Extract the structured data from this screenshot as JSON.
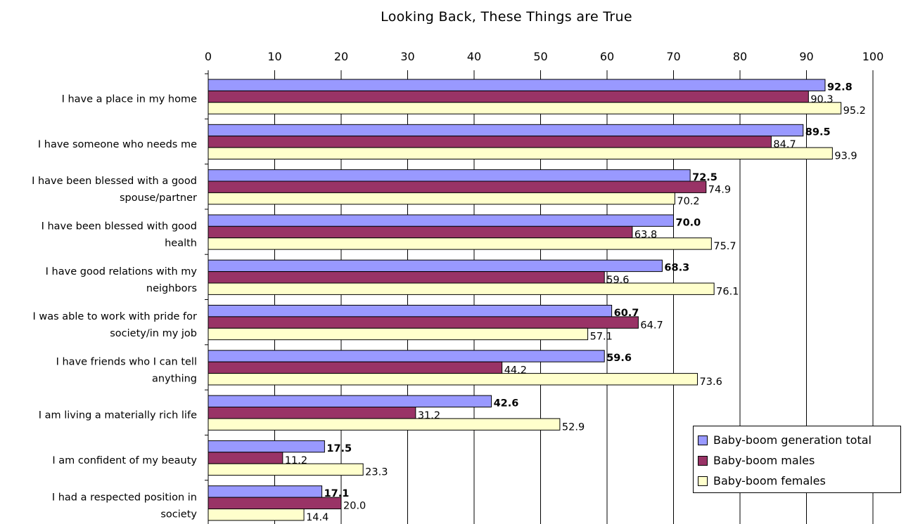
{
  "chart_data": {
    "type": "bar",
    "orientation": "horizontal",
    "title": "Looking Back, These Things are True",
    "xlim": [
      0,
      100
    ],
    "x_ticks": [
      "0",
      "10",
      "20",
      "30",
      "40",
      "50",
      "60",
      "70",
      "80",
      "90",
      "100"
    ],
    "grid": "vertical",
    "legend_position": "bottom-right",
    "categories": [
      [
        "I have a place in my home"
      ],
      [
        "I have someone who needs me"
      ],
      [
        "I have been blessed with a good",
        "spouse/partner"
      ],
      [
        "I have been blessed with good",
        "health"
      ],
      [
        "I have good relations with my",
        "neighbors"
      ],
      [
        "I was able to work with pride for",
        "society/in my job"
      ],
      [
        "I have friends who I can tell",
        "anything"
      ],
      [
        "I am living a materially rich life"
      ],
      [
        "I am confident of my beauty"
      ],
      [
        "I had a respected position in",
        "society"
      ]
    ],
    "series": [
      {
        "name": "Baby-boom generation total",
        "color": "#9999ff",
        "values": [
          92.8,
          89.5,
          72.5,
          70.0,
          68.3,
          60.7,
          59.6,
          42.6,
          17.5,
          17.1
        ],
        "labels": [
          "92.8",
          "89.5",
          "72.5",
          "70.0",
          "68.3",
          "60.7",
          "59.6",
          "42.6",
          "17.5",
          "17.1"
        ]
      },
      {
        "name": "Baby-boom males",
        "color": "#993366",
        "values": [
          90.3,
          84.7,
          74.9,
          63.8,
          59.6,
          64.7,
          44.2,
          31.2,
          11.2,
          20.0
        ],
        "labels": [
          "90.3",
          "84.7",
          "74.9",
          "63.8",
          "59.6",
          "64.7",
          "44.2",
          "31.2",
          "11.2",
          "20.0"
        ]
      },
      {
        "name": "Baby-boom females",
        "color": "#ffffcc",
        "values": [
          95.2,
          93.9,
          70.2,
          75.7,
          76.1,
          57.1,
          73.6,
          52.9,
          23.3,
          14.4
        ],
        "labels": [
          "95.2",
          "93.9",
          "70.2",
          "75.7",
          "76.1",
          "57.1",
          "73.6",
          "52.9",
          "23.3",
          "14.4"
        ]
      }
    ]
  }
}
